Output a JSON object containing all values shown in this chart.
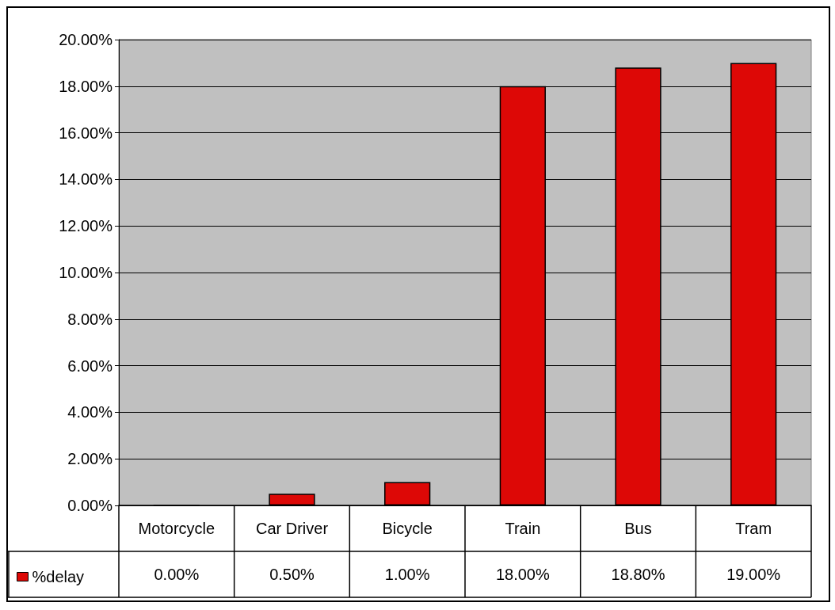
{
  "chart_data": {
    "type": "bar",
    "categories": [
      "Motorcycle",
      "Car Driver",
      "Bicycle",
      "Train",
      "Bus",
      "Tram"
    ],
    "series": [
      {
        "name": "%delay",
        "color": "#dd0806",
        "values": [
          0,
          0.5,
          1,
          18,
          18.8,
          19
        ],
        "value_labels": [
          "0.00%",
          "0.50%",
          "1.00%",
          "18.00%",
          "18.80%",
          "19.00%"
        ]
      }
    ],
    "ylim": [
      0,
      20
    ],
    "yticks": [
      {
        "value": 0,
        "label": "0.00%"
      },
      {
        "value": 2,
        "label": "2.00%"
      },
      {
        "value": 4,
        "label": "4.00%"
      },
      {
        "value": 6,
        "label": "6.00%"
      },
      {
        "value": 8,
        "label": "8.00%"
      },
      {
        "value": 10,
        "label": "10.00%"
      },
      {
        "value": 12,
        "label": "12.00%"
      },
      {
        "value": 14,
        "label": "14.00%"
      },
      {
        "value": 16,
        "label": "16.00%"
      },
      {
        "value": 18,
        "label": "18.00%"
      },
      {
        "value": 20,
        "label": "20.00%"
      }
    ],
    "grid": "y",
    "legend": "bottom left"
  }
}
